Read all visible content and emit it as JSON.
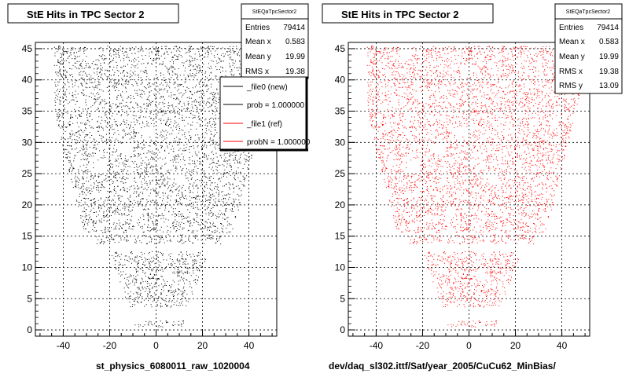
{
  "chart_data": [
    {
      "type": "scatter",
      "title": "StE Hits in TPC Sector 2",
      "xlabel": "st_physics_6080011_raw_1020004",
      "ylabel": "",
      "xlim": [
        -52,
        52
      ],
      "ylim": [
        -1,
        46
      ],
      "xticks": [
        "-40",
        "-20",
        "0",
        "20",
        "40"
      ],
      "yticks": [
        "0",
        "5",
        "10",
        "15",
        "20",
        "25",
        "30",
        "35",
        "40",
        "45"
      ],
      "marker_color": "#000000",
      "grid": true,
      "stats": {
        "header": "StEQaTpcSector2",
        "rows": [
          {
            "label": "Entries",
            "value": "79414"
          },
          {
            "label": "Mean x",
            "value": "0.583"
          },
          {
            "label": "Mean y",
            "value": "19.99"
          },
          {
            "label": "RMS x",
            "value": "19.38"
          }
        ]
      },
      "legend": {
        "placement": "top-right",
        "entries": [
          {
            "label": "_file0 (new)",
            "color": "#000000"
          },
          {
            "label": "prob = 1.000000",
            "color": "#000000"
          },
          {
            "label": "_file1 (ref)",
            "color": "#ff0000"
          },
          {
            "label": "probN = 1.000000",
            "color": "#ff0000"
          }
        ]
      },
      "entries": 79414,
      "mean_x": 0.583,
      "mean_y": 19.99,
      "rms_x": 19.38
    },
    {
      "type": "scatter",
      "title": "StE Hits in TPC Sector 2",
      "xlabel": "dev/daq_sl302.ittf/Sat/year_2005/CuCu62_MinBias/",
      "ylabel": "",
      "xlim": [
        -52,
        52
      ],
      "ylim": [
        -1,
        46
      ],
      "xticks": [
        "-40",
        "-20",
        "0",
        "20",
        "40"
      ],
      "yticks": [
        "0",
        "5",
        "10",
        "15",
        "20",
        "25",
        "30",
        "35",
        "40",
        "45"
      ],
      "marker_color": "#ff0000",
      "grid": true,
      "stats": {
        "header": "StEQaTpcSector2",
        "rows": [
          {
            "label": "Entries",
            "value": "79414"
          },
          {
            "label": "Mean x",
            "value": "0.583"
          },
          {
            "label": "Mean y",
            "value": "19.99"
          },
          {
            "label": "RMS x",
            "value": "19.38"
          },
          {
            "label": "RMS y",
            "value": "13.09"
          }
        ]
      },
      "entries": 79414,
      "mean_x": 0.583,
      "mean_y": 19.99,
      "rms_x": 19.38,
      "rms_y": 13.09
    }
  ],
  "region": {
    "rows": [
      {
        "y0": 0.5,
        "y1": 13.3,
        "half_low": 10,
        "half_high": 22
      },
      {
        "y0": 13.8,
        "y1": 15.5,
        "half_low": 28,
        "half_high": 28
      },
      {
        "y0": 15.5,
        "y1": 45.5,
        "half_low": 32,
        "half_high": 52
      }
    ],
    "center_x": 1,
    "gaps": [
      [
        -20,
        1.5,
        13.5,
        2.2
      ],
      [
        -26,
        13.0,
        12.0,
        0.6
      ]
    ],
    "holes": [
      [
        -30,
        43.5,
        5,
        2
      ],
      [
        -4,
        40.5,
        5,
        2
      ],
      [
        13,
        39,
        4,
        1.5
      ],
      [
        -22,
        36.5,
        4,
        1.5
      ],
      [
        -5,
        31,
        5,
        1.5
      ],
      [
        -15,
        28,
        5,
        2.5
      ],
      [
        -27,
        25,
        5,
        2
      ],
      [
        8,
        24,
        4,
        1.5
      ],
      [
        -14,
        9,
        5,
        1.5
      ],
      [
        4,
        8,
        3,
        2
      ],
      [
        20,
        34,
        4,
        1.5
      ],
      [
        -10,
        18,
        4,
        1.5
      ]
    ],
    "vgaps": [
      -8,
      12
    ]
  }
}
